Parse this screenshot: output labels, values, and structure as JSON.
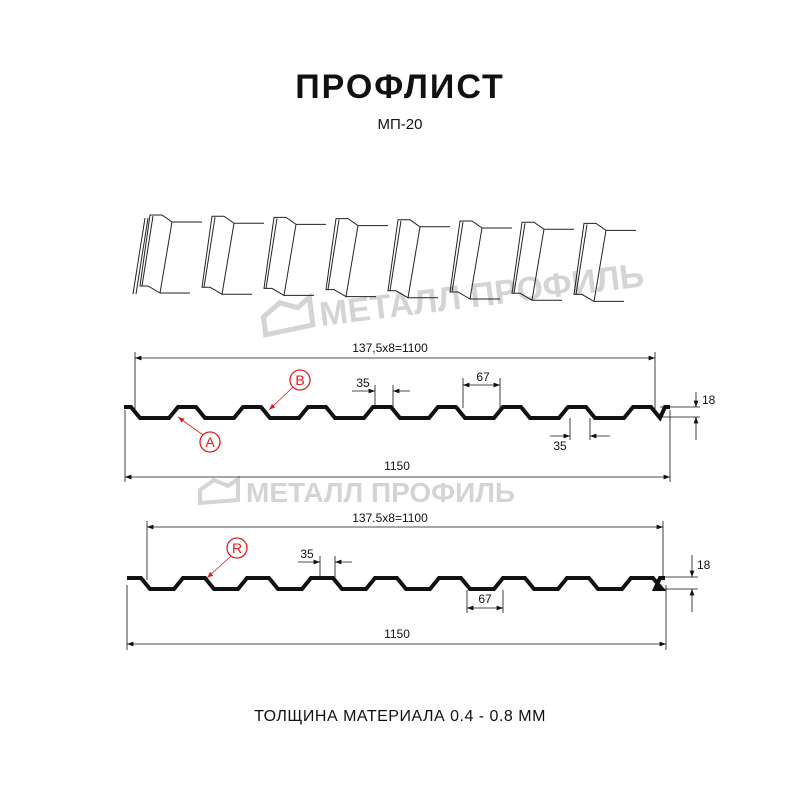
{
  "title": "ПРОФЛИСТ",
  "subtitle": "МП-20",
  "footer": "ТОЛЩИНА МАТЕРИАЛА 0.4 - 0.8 ММ",
  "watermark": "МЕТАЛЛ ПРОФИЛЬ",
  "colors": {
    "profile": "#111111",
    "callout": "#e21b1b",
    "watermark": "#d4d4d4"
  },
  "profile_a": {
    "pitch_label": "137,5x8=1100",
    "top_width": "35",
    "rib_width": "67",
    "height": "18",
    "bottom_width": "35",
    "total_width": "1150",
    "callouts": [
      "A",
      "B"
    ]
  },
  "profile_b": {
    "pitch_label": "137.5x8=1100",
    "top_width": "35",
    "bottom_width": "67",
    "height": "18",
    "total_width": "1150",
    "callouts": [
      "R"
    ]
  }
}
